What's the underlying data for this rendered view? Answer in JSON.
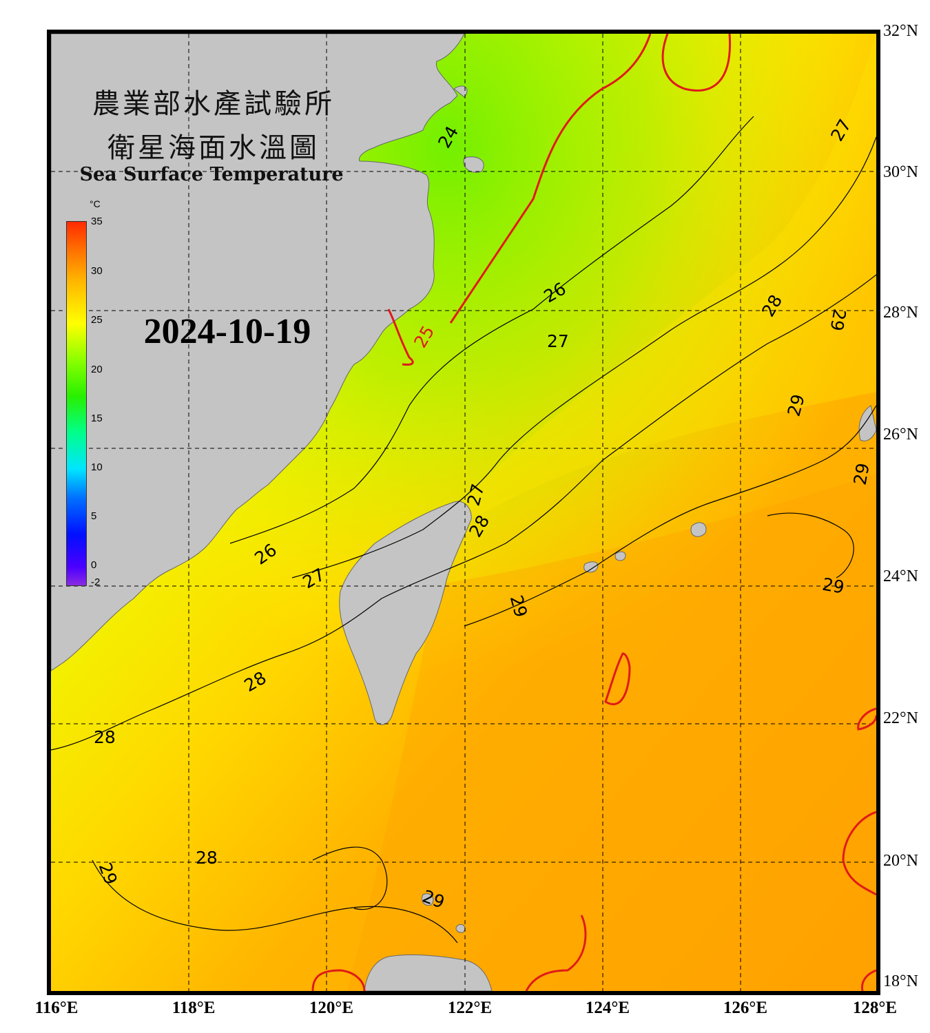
{
  "header": {
    "title_zh_line1": "農業部水產試驗所",
    "title_zh_line2": "衛星海面水溫圖",
    "title_en": "Sea Surface Temperature",
    "date": "2024-10-19"
  },
  "colorbar": {
    "unit": "°C",
    "min": -2,
    "max": 35,
    "ticks": [
      {
        "label": "35",
        "value": 35
      },
      {
        "label": "30",
        "value": 30
      },
      {
        "label": "25",
        "value": 25
      },
      {
        "label": "20",
        "value": 20
      },
      {
        "label": "15",
        "value": 15
      },
      {
        "label": "10",
        "value": 10
      },
      {
        "label": "5",
        "value": 5
      },
      {
        "label": "0",
        "value": 0
      },
      {
        "label": "-2",
        "value": -2
      }
    ]
  },
  "axes": {
    "latitude_labels": [
      "32°N",
      "30°N",
      "28°N",
      "26°N",
      "24°N",
      "22°N",
      "20°N",
      "18°N"
    ],
    "longitude_labels": [
      "116°E",
      "118°E",
      "120°E",
      "122°E",
      "124°E",
      "126°E",
      "128°E"
    ]
  },
  "contour_labels": [
    "24",
    "25",
    "26",
    "27",
    "26",
    "27",
    "28",
    "29",
    "29",
    "27",
    "28",
    "29",
    "29",
    "29",
    "27",
    "28",
    "28",
    "28",
    "28",
    "29",
    "29",
    "26"
  ],
  "colors": {
    "land": "#c4c4c4",
    "frame": "#000000",
    "contour_25": "#e0202a",
    "contour_30": "#e01a1a",
    "contour_other": "#000000"
  }
}
